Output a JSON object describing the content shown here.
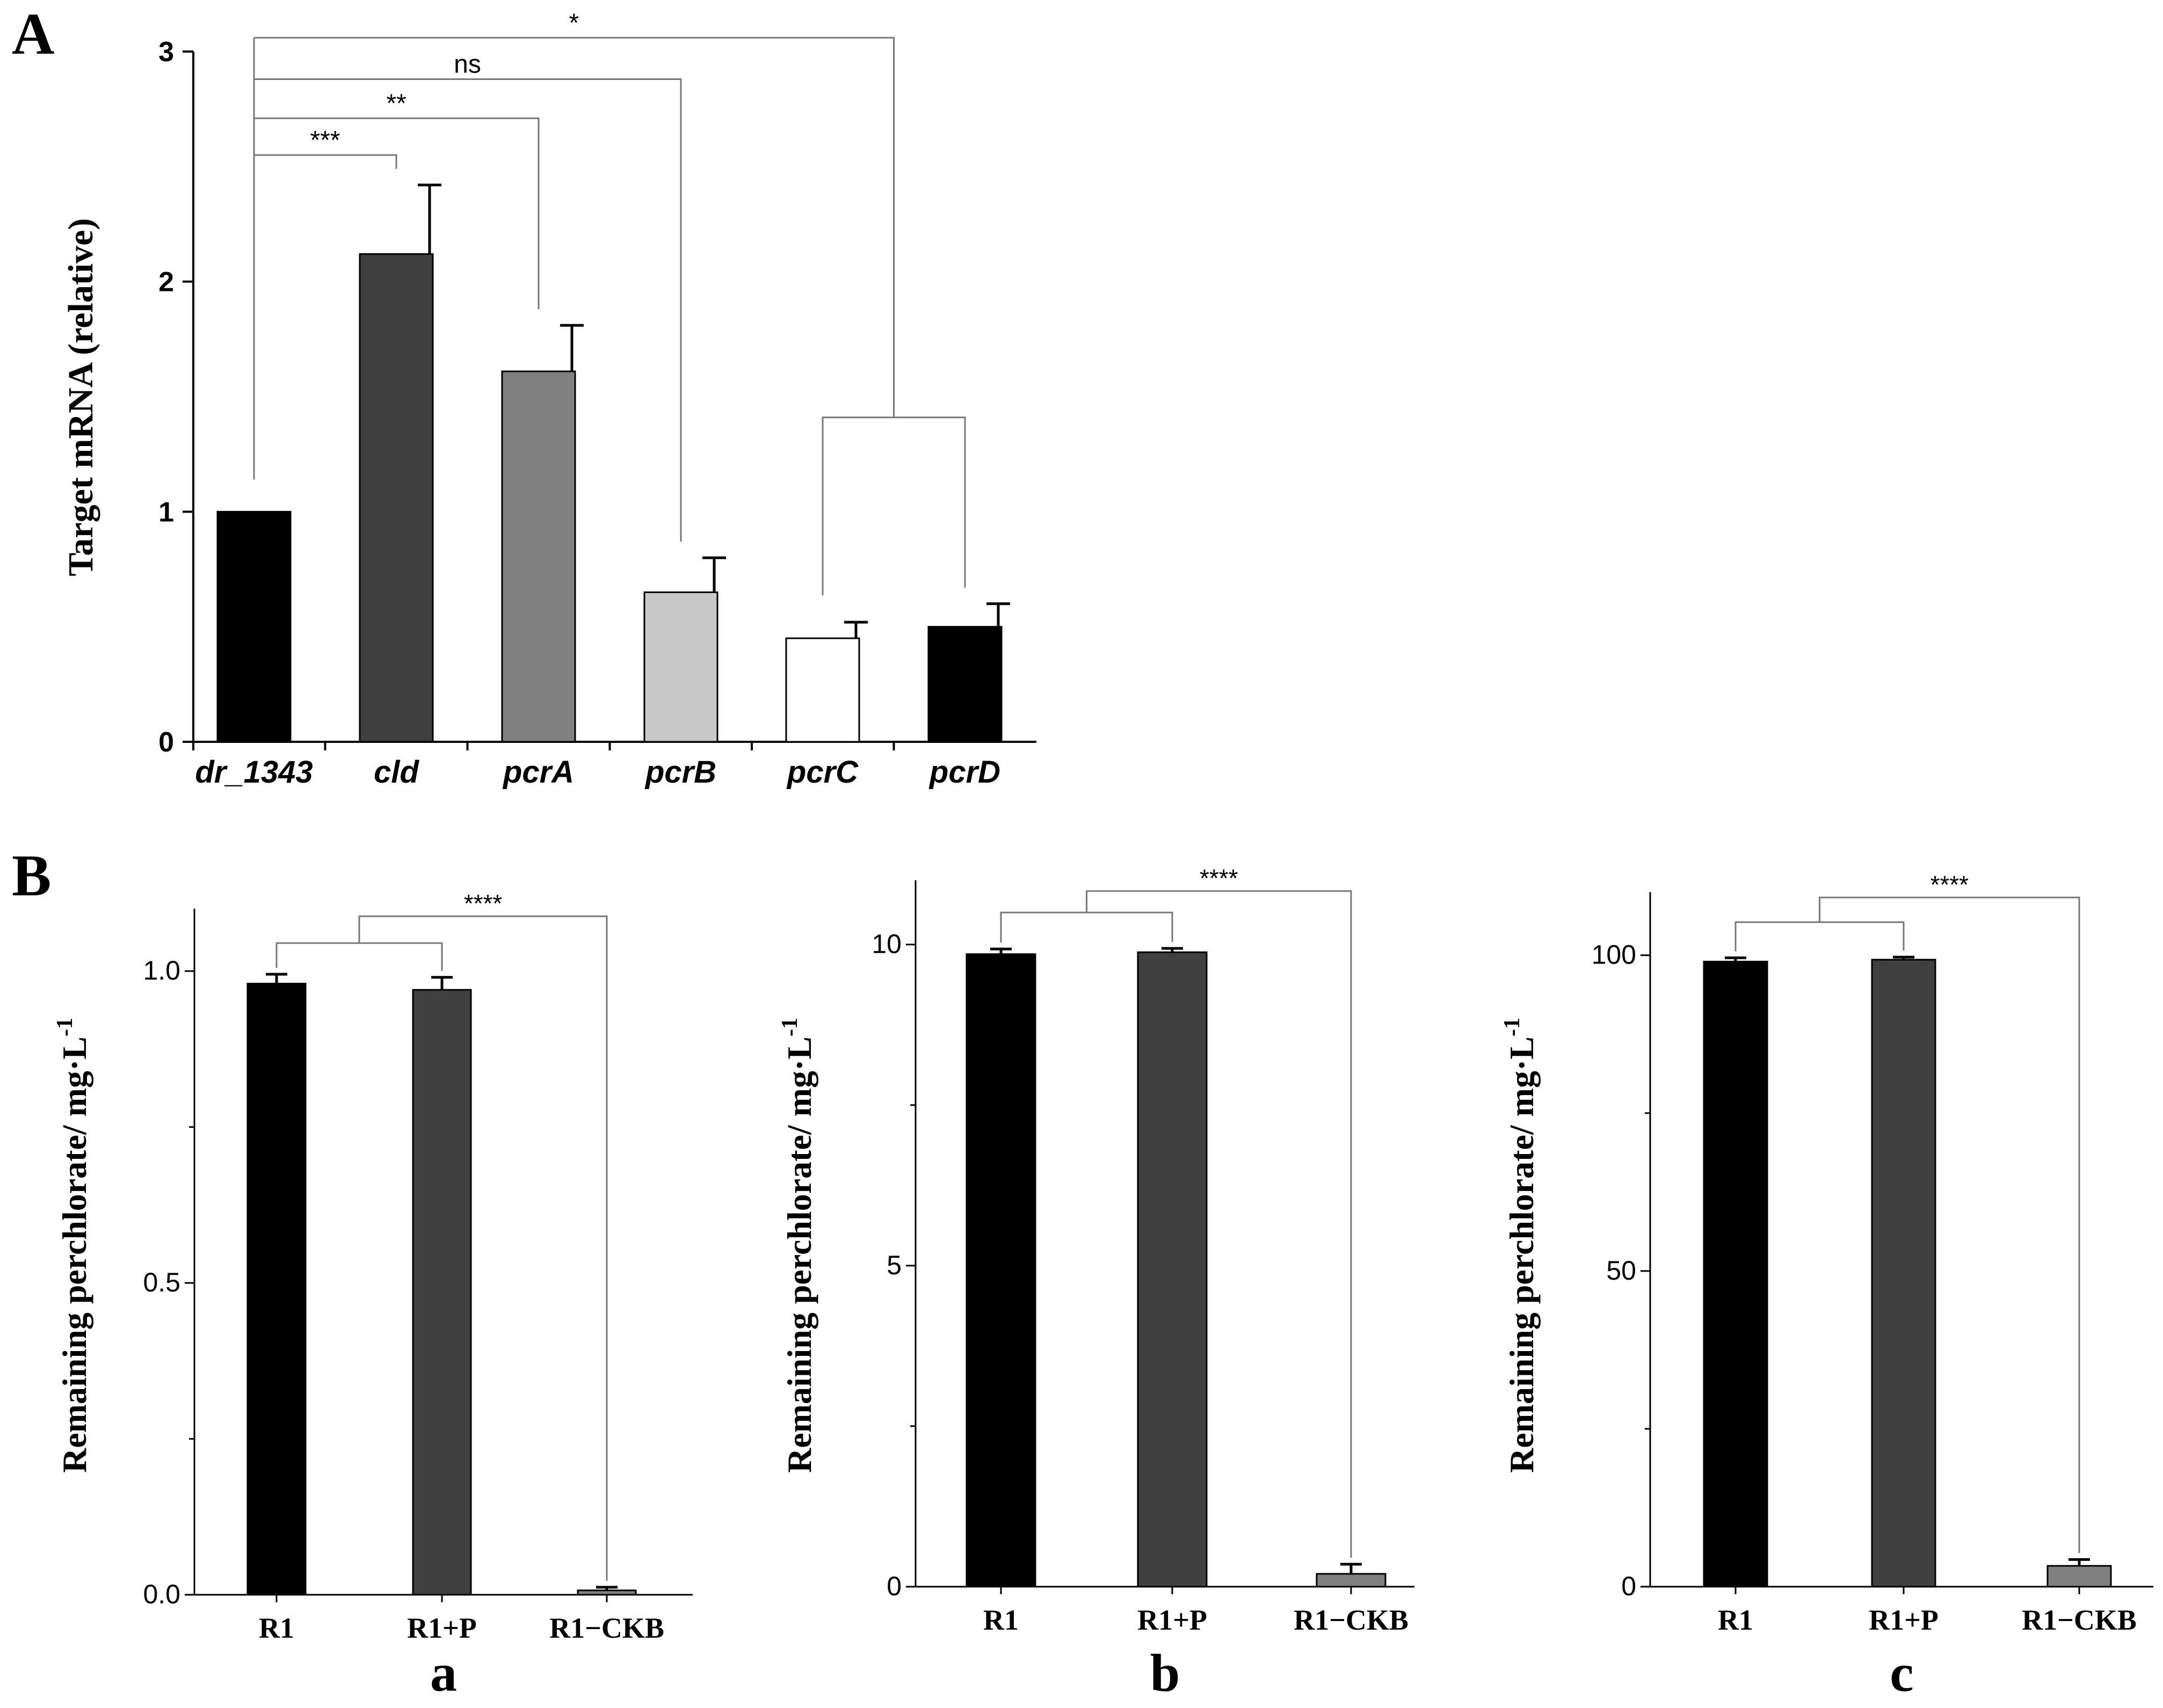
{
  "panels": {
    "A": {
      "letter": "A"
    },
    "B": {
      "letter": "B"
    }
  },
  "colors": {
    "black": "#000000",
    "dark_gray": "#404040",
    "mid_gray": "#808080",
    "light_gray": "#c8c8c8",
    "white": "#ffffff",
    "axis": "#000000",
    "bracket": "#777777"
  },
  "chart_data": [
    {
      "id": "A",
      "type": "bar",
      "title": "",
      "ylabel": "Target mRNA (relative)",
      "xlabel": "",
      "ylim": [
        0,
        3
      ],
      "yticks": [
        {
          "value": 0,
          "label": "0"
        },
        {
          "value": 1,
          "label": "1"
        },
        {
          "value": 2,
          "label": "2"
        },
        {
          "value": 3,
          "label": "3"
        }
      ],
      "categories": [
        "dr_1343",
        "cld",
        "pcrA",
        "pcrB",
        "pcrC",
        "pcrD"
      ],
      "values": [
        1.0,
        2.12,
        1.61,
        0.65,
        0.45,
        0.5
      ],
      "errors": [
        0,
        0.3,
        0.2,
        0.15,
        0.07,
        0.1
      ],
      "bar_colors": [
        "#000000",
        "#404040",
        "#808080",
        "#c8c8c8",
        "#ffffff",
        "#000000"
      ],
      "significance": [
        {
          "from": 0,
          "to": 1,
          "label": "***",
          "level": 2.55
        },
        {
          "from": 0,
          "to": 2,
          "label": "**",
          "level": 2.71
        },
        {
          "from": 0,
          "to": 3,
          "label": "ns",
          "level": 2.88
        },
        {
          "from": 0,
          "to": "group-4-5",
          "label": "*",
          "level": 3.06
        }
      ],
      "grouping": {
        "members": [
          4,
          5
        ],
        "level": 1.41
      }
    },
    {
      "id": "a",
      "sublabel": "a",
      "type": "bar",
      "ylabel": "Remaining perchlorate/ mg·L",
      "ylabel_sup": "-1",
      "ylim": [
        0,
        1.1
      ],
      "yticks": [
        {
          "value": 0,
          "label": "0.0"
        },
        {
          "value": 0.5,
          "label": "0.5"
        },
        {
          "value": 1.0,
          "label": "1.0"
        }
      ],
      "minor_ticks": [
        0.25,
        0.75
      ],
      "categories": [
        "R1",
        "R1+P",
        "R1−CKB"
      ],
      "values": [
        0.98,
        0.97,
        0.007
      ],
      "errors": [
        0.015,
        0.02,
        0.005
      ],
      "bar_colors": [
        "#000000",
        "#404040",
        "#808080"
      ],
      "significance_label": "****"
    },
    {
      "id": "b",
      "sublabel": "b",
      "type": "bar",
      "ylabel": "Remaining perchlorate/ mg·L",
      "ylabel_sup": "-1",
      "ylim": [
        0,
        11
      ],
      "yticks": [
        {
          "value": 0,
          "label": "0"
        },
        {
          "value": 5,
          "label": "5"
        },
        {
          "value": 10,
          "label": "10"
        }
      ],
      "minor_ticks": [
        2.5,
        7.5
      ],
      "categories": [
        "R1",
        "R1+P",
        "R1−CKB"
      ],
      "values": [
        9.85,
        9.88,
        0.2
      ],
      "errors": [
        0.08,
        0.06,
        0.15
      ],
      "bar_colors": [
        "#000000",
        "#404040",
        "#808080"
      ],
      "significance_label": "****"
    },
    {
      "id": "c",
      "sublabel": "c",
      "type": "bar",
      "ylabel": "Remaining perchlorate/ mg·L",
      "ylabel_sup": "-1",
      "ylim": [
        0,
        110
      ],
      "yticks": [
        {
          "value": 0,
          "label": "0"
        },
        {
          "value": 50,
          "label": "50"
        },
        {
          "value": 100,
          "label": "100"
        }
      ],
      "minor_ticks": [
        25,
        75
      ],
      "categories": [
        "R1",
        "R1+P",
        "R1−CKB"
      ],
      "values": [
        99.0,
        99.3,
        3.3
      ],
      "errors": [
        0.6,
        0.4,
        1.0
      ],
      "bar_colors": [
        "#000000",
        "#404040",
        "#808080"
      ],
      "significance_label": "****"
    }
  ]
}
